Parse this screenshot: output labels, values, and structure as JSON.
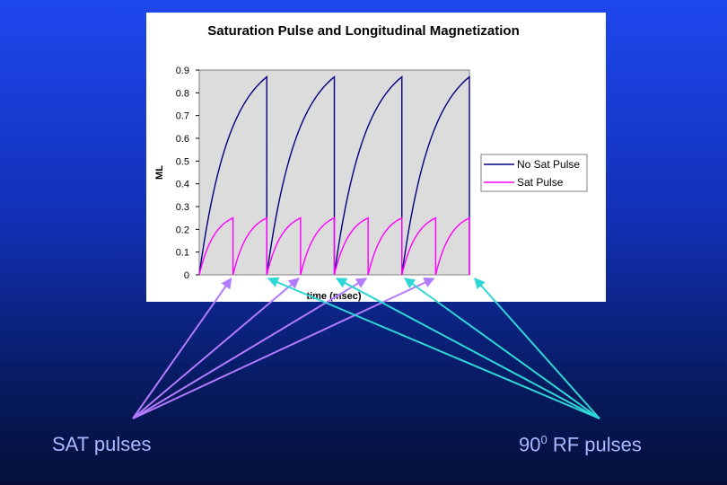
{
  "chart_data": {
    "type": "line",
    "title": "Saturation Pulse and Longitudinal Magnetization",
    "xlabel": "time (msec)",
    "ylabel": "ML",
    "ylim": [
      0,
      0.9
    ],
    "yticks": [
      "0",
      "0.1",
      "0.2",
      "0.3",
      "0.4",
      "0.5",
      "0.6",
      "0.7",
      "0.8",
      "0.9"
    ],
    "grid": false,
    "legend_position": "right",
    "series": [
      {
        "name": "No Sat Pulse",
        "color": "#000080",
        "pulses": 4,
        "peak": 0.87,
        "recovery_rate": 2.2
      },
      {
        "name": "Sat Pulse",
        "color": "#ff00ff",
        "pulses": 8,
        "peak": 0.25,
        "recovery_rate": 2.2
      }
    ]
  },
  "annotations": {
    "left_label": "SAT pulses",
    "right_label_prefix": "90",
    "right_label_sup": "0",
    "right_label_suffix": " RF pulses",
    "left_arrow_color": "#b27bff",
    "right_arrow_color": "#2fd6d6"
  }
}
